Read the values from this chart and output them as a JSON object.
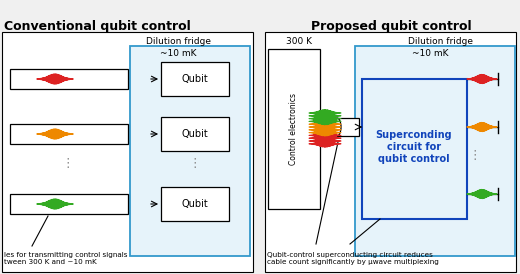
{
  "left_full_title": "Conventional qubit control",
  "right_title": "Proposed qubit control",
  "dilution_fridge": "Dilution fridge",
  "temp_label": "~10 mK",
  "temp_300": "300 K",
  "qubit_label": "Qubit",
  "control_electronics": "Control electronics",
  "superconducting_text": "Superconding\ncircuit for\nqubit control",
  "caption_left": "les for transmitting control signals\ntween 300 K and ~10 mK",
  "caption_right": "Qubit-control superconducting circuit reduces\ncable count significantly by μwave multiplexing",
  "signal_colors": [
    "#dd2222",
    "#ee8800",
    "#33aa22"
  ],
  "blue_light": "#3399cc",
  "blue_dark": "#1144bb",
  "bg_color": "#f0f0f0",
  "white": "#ffffff",
  "black": "#000000",
  "gray_dots": "#888888",
  "panel_bg": "#f0f0f0"
}
